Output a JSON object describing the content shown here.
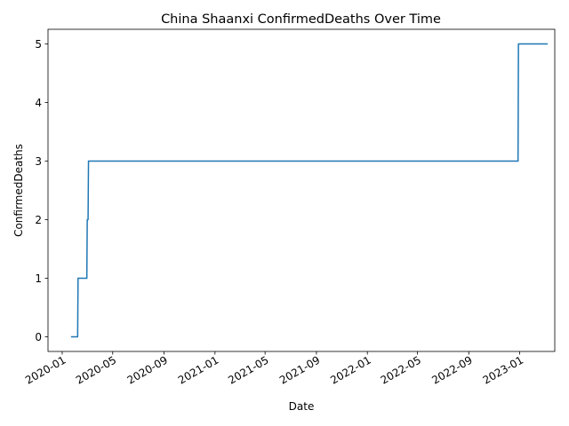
{
  "chart_data": {
    "type": "line",
    "title": "China Shaanxi ConfirmedDeaths Over Time",
    "xlabel": "Date",
    "ylabel": "ConfirmedDeaths",
    "x_axis_type": "date",
    "xlim": [
      "2019-11-28",
      "2023-03-26"
    ],
    "ylim": [
      -0.25,
      5.25
    ],
    "x_ticks": [
      "2020-01",
      "2020-05",
      "2020-09",
      "2021-01",
      "2021-05",
      "2021-09",
      "2022-01",
      "2022-05",
      "2022-09",
      "2023-01"
    ],
    "y_ticks": [
      0,
      1,
      2,
      3,
      4,
      5
    ],
    "grid": false,
    "legend": "none",
    "line_color": "#1f77b4",
    "series": [
      {
        "x": [
          "2020-01-22",
          "2020-02-07",
          "2020-02-08",
          "2020-02-29",
          "2020-03-01",
          "2020-03-03",
          "2020-03-04",
          "2020-12-31",
          "2022-12-28",
          "2022-12-29",
          "2023-03-09"
        ],
        "values": [
          0,
          0,
          1,
          1,
          2,
          2,
          3,
          3,
          3,
          5,
          5
        ]
      }
    ]
  }
}
